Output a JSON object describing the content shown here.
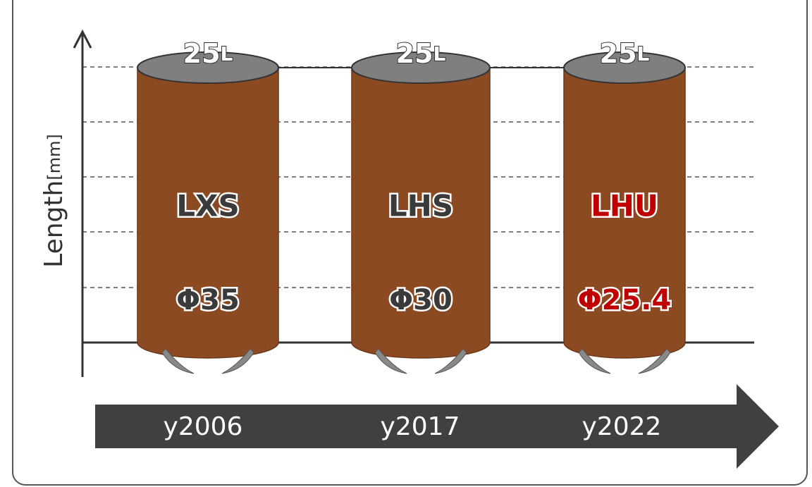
{
  "axis": {
    "label": "Length",
    "unit": "[mm]"
  },
  "items": [
    {
      "top_value": "25",
      "top_unit": "L",
      "name": "LXS",
      "diameter": "Φ35",
      "year": "y2006"
    },
    {
      "top_value": "25",
      "top_unit": "L",
      "name": "LHS",
      "diameter": "Φ30",
      "year": "y2017"
    },
    {
      "top_value": "25",
      "top_unit": "L",
      "name": "LHU",
      "diameter": "Φ25.4",
      "year": "y2022"
    }
  ]
}
